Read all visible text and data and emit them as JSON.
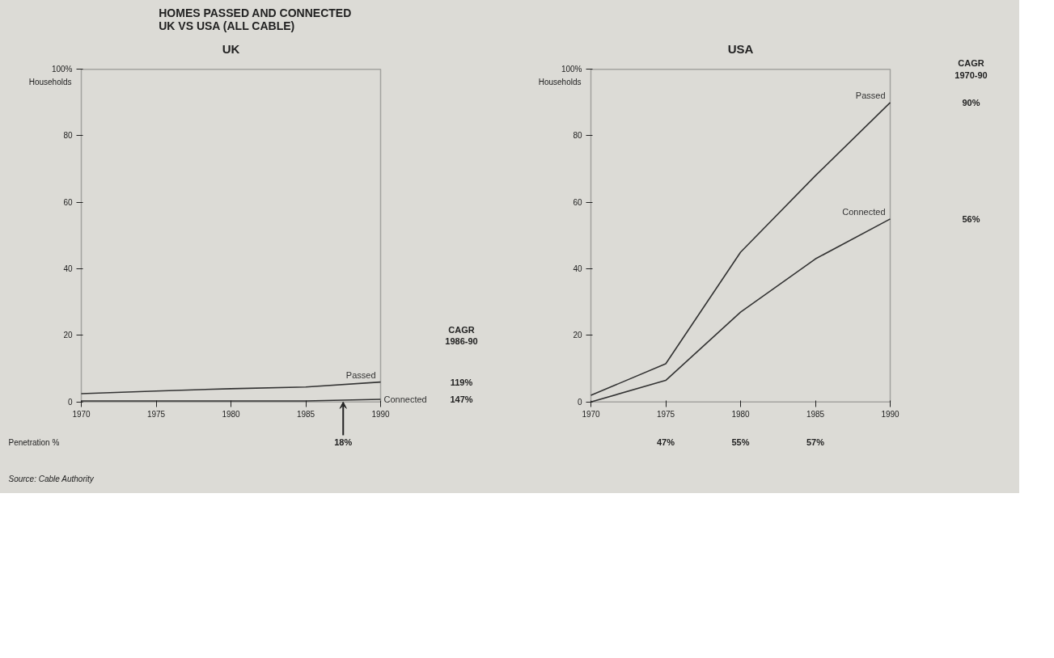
{
  "chart_data": [
    {
      "type": "line",
      "title": "HOMES PASSED AND CONNECTED\nUK VS USA (ALL CABLE)",
      "subtitle": "UK",
      "ylabel": "Households",
      "x": [
        1970,
        1975,
        1980,
        1985,
        1990
      ],
      "xlim": [
        1970,
        1990
      ],
      "xticks": [
        1970,
        1975,
        1980,
        1985,
        1990
      ],
      "ylim": [
        0,
        100
      ],
      "yticks": [
        0,
        20,
        40,
        60,
        80,
        {
          "value": 100,
          "label": "100%"
        }
      ],
      "grid": false,
      "marker": "none",
      "line_style": "solid",
      "series": [
        {
          "name": "Passed",
          "color": "#333333",
          "values": [
            2.5,
            3.3,
            4,
            4.5,
            6
          ]
        },
        {
          "name": "Connected",
          "color": "#333333",
          "values": [
            0.3,
            0.3,
            0.3,
            0.3,
            0.8
          ]
        }
      ],
      "annotations": [
        "Penetration %",
        {
          "text": "18%",
          "x": 1987.5,
          "y": 0
        },
        "CAGR\n1986-90",
        "119%",
        "147%",
        "Source: Cable Authority"
      ]
    },
    {
      "type": "line",
      "subtitle": "USA",
      "ylabel": "Households",
      "x": [
        1970,
        1975,
        1980,
        1985,
        1990
      ],
      "xlim": [
        1970,
        1990
      ],
      "xticks": [
        1970,
        1975,
        1980,
        1985,
        1990
      ],
      "ylim": [
        0,
        100
      ],
      "yticks": [
        0,
        20,
        40,
        60,
        80,
        {
          "value": 100,
          "label": "100%"
        }
      ],
      "grid": false,
      "marker": "none",
      "line_style": "solid",
      "series": [
        {
          "name": "Passed",
          "color": "#333333",
          "values": [
            2,
            11.5,
            45,
            68,
            90
          ]
        },
        {
          "name": "Connected",
          "color": "#333333",
          "values": [
            0,
            6.5,
            27,
            43,
            55
          ]
        }
      ],
      "annotations": [
        "47%",
        "55%",
        "57%",
        "CAGR\n1970-90",
        "90%",
        "56%"
      ]
    }
  ]
}
